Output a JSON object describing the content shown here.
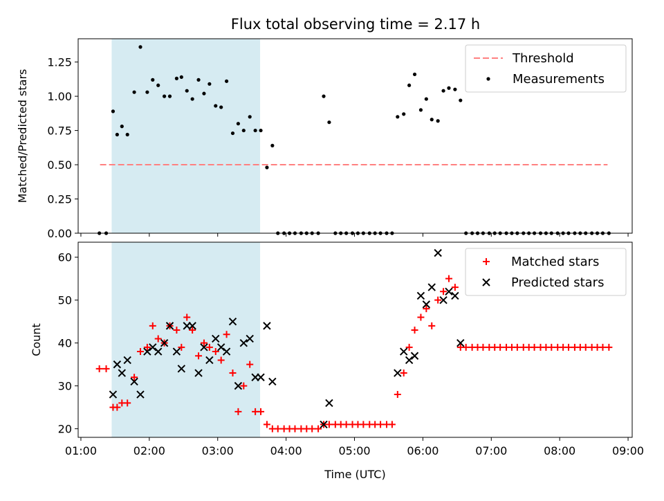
{
  "title": "Flux total observing time = 2.17 h",
  "colors": {
    "threshold": "#ff8080",
    "measurements": "#000000",
    "matched": "#ff0000",
    "predicted": "#000000",
    "shade": "#add8e6"
  },
  "chart_data": [
    {
      "type": "scatter",
      "ylabel": "Matched/Predicted stars",
      "ylim": [
        0,
        1.42
      ],
      "yticks": [
        "0.00",
        "0.25",
        "0.50",
        "0.75",
        "1.00",
        "1.25"
      ],
      "ytick_values": [
        0,
        0.25,
        0.5,
        0.75,
        1.0,
        1.25
      ],
      "xlim_hours": [
        0.96,
        9.06
      ],
      "shaded_span_hours": [
        1.45,
        3.62
      ],
      "legend_position": "upper right",
      "legend": [
        "Threshold",
        "Measurements"
      ],
      "threshold": {
        "name": "Threshold",
        "value": 0.5,
        "x_range_hours": [
          1.28,
          8.7
        ]
      },
      "series": [
        {
          "name": "Measurements",
          "x_hours": [
            1.27,
            1.37,
            1.47,
            1.53,
            1.6,
            1.68,
            1.78,
            1.87,
            1.97,
            2.05,
            2.13,
            2.22,
            2.3,
            2.4,
            2.47,
            2.55,
            2.63,
            2.72,
            2.8,
            2.88,
            2.97,
            3.05,
            3.13,
            3.22,
            3.3,
            3.38,
            3.47,
            3.55,
            3.63,
            3.72,
            3.8,
            3.88,
            3.97,
            4.05,
            4.13,
            4.22,
            4.3,
            4.38,
            4.47,
            4.55,
            4.63,
            4.72,
            4.8,
            4.88,
            4.97,
            5.05,
            5.13,
            5.22,
            5.3,
            5.38,
            5.47,
            5.55,
            5.63,
            5.72,
            5.8,
            5.88,
            5.97,
            6.05,
            6.13,
            6.22,
            6.3,
            6.38,
            6.47,
            6.55,
            6.63,
            6.72,
            6.8,
            6.88,
            6.97,
            7.05,
            7.13,
            7.22,
            7.3,
            7.38,
            7.47,
            7.55,
            7.63,
            7.72,
            7.8,
            7.88,
            7.97,
            8.05,
            8.13,
            8.22,
            8.3,
            8.38,
            8.47,
            8.55,
            8.63,
            8.72
          ],
          "y": [
            0,
            0,
            0.89,
            0.72,
            0.78,
            0.72,
            1.03,
            1.36,
            1.03,
            1.12,
            1.08,
            1.0,
            1.0,
            1.13,
            1.14,
            1.04,
            0.98,
            1.12,
            1.02,
            1.09,
            0.93,
            0.92,
            1.11,
            0.73,
            0.8,
            0.75,
            0.85,
            0.75,
            0.75,
            0.48,
            0.64,
            0,
            0,
            0,
            0,
            0,
            0,
            0,
            0,
            1.0,
            0.81,
            0,
            0,
            0,
            0,
            0,
            0,
            0,
            0,
            0,
            0,
            0,
            0.85,
            0.87,
            1.08,
            1.16,
            0.9,
            0.98,
            0.83,
            0.82,
            1.04,
            1.06,
            1.05,
            0.97,
            0,
            0,
            0,
            0,
            0,
            0,
            0,
            0,
            0,
            0,
            0,
            0,
            0,
            0,
            0,
            0,
            0,
            0,
            0,
            0,
            0,
            0,
            0,
            0,
            0,
            0
          ]
        }
      ]
    },
    {
      "type": "scatter",
      "xlabel": "Time (UTC)",
      "ylabel": "Count",
      "ylim": [
        18,
        63.5
      ],
      "yticks": [
        "20",
        "30",
        "40",
        "50",
        "60"
      ],
      "ytick_values": [
        20,
        30,
        40,
        50,
        60
      ],
      "xlim_hours": [
        0.96,
        9.06
      ],
      "xticks": [
        "01:00",
        "02:00",
        "03:00",
        "04:00",
        "05:00",
        "06:00",
        "07:00",
        "08:00",
        "09:00"
      ],
      "xtick_hours": [
        1,
        2,
        3,
        4,
        5,
        6,
        7,
        8,
        9
      ],
      "shaded_span_hours": [
        1.45,
        3.62
      ],
      "legend_position": "upper right",
      "legend": [
        "Matched stars",
        "Predicted stars"
      ],
      "series": [
        {
          "name": "Matched stars",
          "x_hours": [
            1.27,
            1.37,
            1.47,
            1.53,
            1.6,
            1.68,
            1.78,
            1.87,
            1.97,
            2.05,
            2.13,
            2.22,
            2.3,
            2.4,
            2.47,
            2.55,
            2.63,
            2.72,
            2.8,
            2.88,
            2.97,
            3.05,
            3.13,
            3.22,
            3.3,
            3.38,
            3.47,
            3.55,
            3.63,
            3.72,
            3.8,
            3.88,
            3.97,
            4.05,
            4.13,
            4.22,
            4.3,
            4.38,
            4.47,
            4.55,
            4.63,
            4.72,
            4.8,
            4.88,
            4.97,
            5.05,
            5.13,
            5.22,
            5.3,
            5.38,
            5.47,
            5.55,
            5.63,
            5.72,
            5.8,
            5.88,
            5.97,
            6.05,
            6.13,
            6.22,
            6.3,
            6.38,
            6.47,
            6.55,
            6.63,
            6.72,
            6.8,
            6.88,
            6.97,
            7.05,
            7.13,
            7.22,
            7.3,
            7.38,
            7.47,
            7.55,
            7.63,
            7.72,
            7.8,
            7.88,
            7.97,
            8.05,
            8.13,
            8.22,
            8.3,
            8.38,
            8.47,
            8.55,
            8.63,
            8.72
          ],
          "y": [
            34,
            34,
            25,
            25,
            26,
            26,
            32,
            38,
            39,
            44,
            41,
            40,
            44,
            43,
            39,
            46,
            43,
            37,
            40,
            39,
            38,
            36,
            42,
            33,
            24,
            30,
            35,
            24,
            24,
            21,
            20,
            20,
            20,
            20,
            20,
            20,
            20,
            20,
            20,
            21,
            21,
            21,
            21,
            21,
            21,
            21,
            21,
            21,
            21,
            21,
            21,
            21,
            28,
            33,
            39,
            43,
            46,
            48,
            44,
            50,
            52,
            55,
            53,
            39,
            39,
            39,
            39,
            39,
            39,
            39,
            39,
            39,
            39,
            39,
            39,
            39,
            39,
            39,
            39,
            39,
            39,
            39,
            39,
            39,
            39,
            39,
            39,
            39,
            39,
            39
          ]
        },
        {
          "name": "Predicted stars",
          "x_hours": [
            1.47,
            1.53,
            1.6,
            1.68,
            1.78,
            1.87,
            1.97,
            2.05,
            2.13,
            2.22,
            2.3,
            2.4,
            2.47,
            2.55,
            2.63,
            2.72,
            2.8,
            2.88,
            2.97,
            3.05,
            3.13,
            3.22,
            3.3,
            3.38,
            3.47,
            3.55,
            3.63,
            3.72,
            3.8,
            4.55,
            4.63,
            5.63,
            5.72,
            5.8,
            5.88,
            5.97,
            6.05,
            6.13,
            6.22,
            6.3,
            6.38,
            6.47,
            6.55
          ],
          "y": [
            28,
            35,
            33,
            36,
            31,
            28,
            38,
            39,
            38,
            40,
            44,
            38,
            34,
            44,
            44,
            33,
            39,
            36,
            41,
            39,
            38,
            45,
            30,
            40,
            41,
            32,
            32,
            44,
            31,
            21,
            26,
            33,
            38,
            36,
            37,
            51,
            49,
            53,
            61,
            50,
            52,
            51,
            40
          ]
        }
      ]
    }
  ]
}
